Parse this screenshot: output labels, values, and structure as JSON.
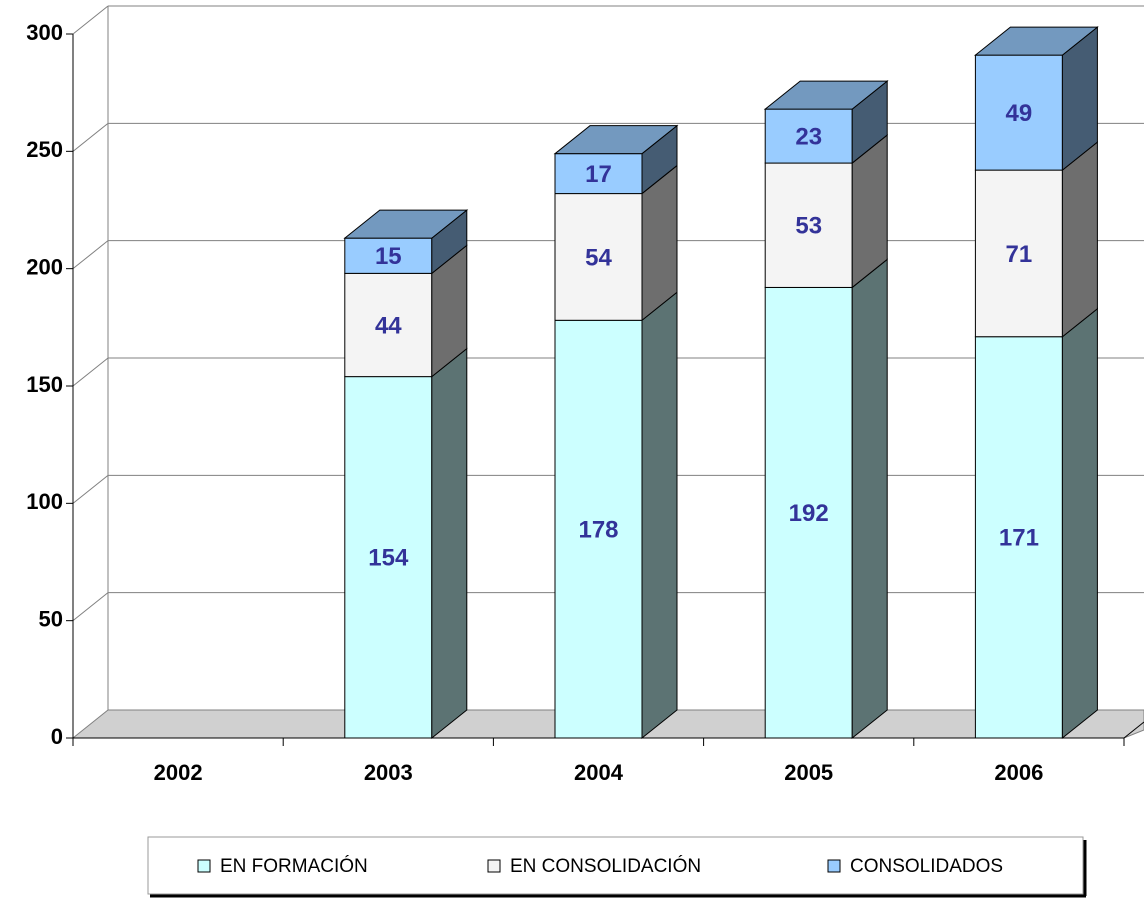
{
  "chart_data": {
    "type": "bar3d_stacked",
    "categories": [
      "2002",
      "2003",
      "2004",
      "2005",
      "2006"
    ],
    "series": [
      {
        "name": "EN FORMACIÓN",
        "color": "#ccffff",
        "values": [
          null,
          154,
          178,
          192,
          171
        ]
      },
      {
        "name": "EN CONSOLIDACIÓN",
        "color": "#f4f4f4",
        "values": [
          null,
          44,
          54,
          53,
          71
        ]
      },
      {
        "name": "CONSOLIDADOS",
        "color": "#99ccff",
        "values": [
          null,
          15,
          17,
          23,
          49
        ]
      }
    ],
    "ylim": [
      0,
      300
    ],
    "yticks": [
      0,
      50,
      100,
      150,
      200,
      250,
      300
    ],
    "grid": true
  }
}
